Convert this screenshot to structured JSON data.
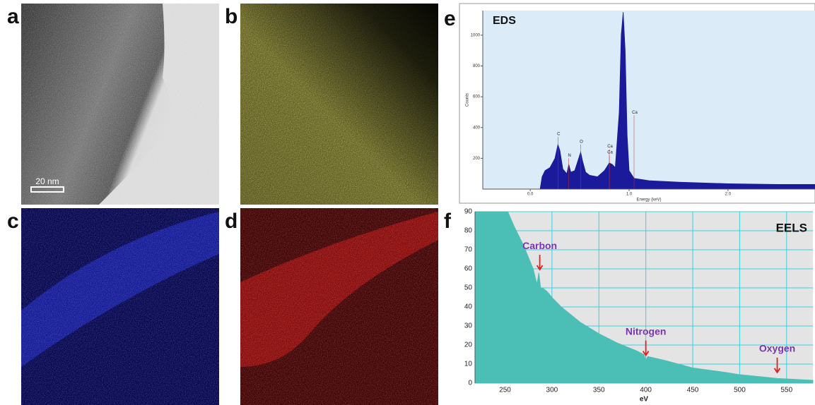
{
  "panels": [
    {
      "label": "a",
      "scale_bar": "20 nm"
    },
    {
      "label": "b"
    },
    {
      "label": "c"
    },
    {
      "label": "d"
    },
    {
      "label": "e"
    },
    {
      "label": "f"
    }
  ],
  "chart_data": [
    {
      "type": "area",
      "title": "EDS",
      "xlabel": "Energy (keV)",
      "ylabel": "Counts",
      "color": "#1a1a9a",
      "xlim": [
        -0.48,
        2.88
      ],
      "ylim": [
        0,
        1160
      ],
      "xticks": [
        {
          "value": 0,
          "label": "0.0"
        },
        {
          "value": 1,
          "label": "1.0"
        },
        {
          "value": 2,
          "label": "2.0"
        }
      ],
      "yticks": [
        200,
        400,
        600,
        800,
        1000
      ],
      "grid": false,
      "x": [
        0.1,
        0.12,
        0.15,
        0.2,
        0.25,
        0.28,
        0.3,
        0.33,
        0.37,
        0.39,
        0.41,
        0.45,
        0.49,
        0.51,
        0.53,
        0.56,
        0.6,
        0.68,
        0.75,
        0.8,
        0.83,
        0.86,
        0.9,
        0.92,
        0.94,
        0.96,
        0.98,
        1.0,
        1.05,
        1.2,
        1.5,
        2.0,
        2.5,
        2.88
      ],
      "values": [
        0,
        80,
        120,
        140,
        200,
        290,
        250,
        130,
        100,
        160,
        110,
        120,
        200,
        240,
        180,
        110,
        90,
        80,
        120,
        170,
        160,
        140,
        500,
        1000,
        1150,
        900,
        350,
        120,
        70,
        55,
        45,
        35,
        30,
        30
      ],
      "annotations": [
        {
          "text": "C",
          "x": 0.28,
          "y": 340
        },
        {
          "text": "N",
          "x": 0.39,
          "y": 200
        },
        {
          "text": "O",
          "x": 0.51,
          "y": 290
        },
        {
          "text": "Ca",
          "x": 0.8,
          "y": 220
        },
        {
          "text": "Ca",
          "x": 0.8,
          "y": 260
        },
        {
          "text": "Ca",
          "x": 1.05,
          "y": 480
        }
      ]
    },
    {
      "type": "area",
      "title": "EELS",
      "xlabel": "eV",
      "color": "#4bbfb6",
      "xlim": [
        218,
        578
      ],
      "ylim": [
        0,
        90
      ],
      "xticks": [
        250,
        300,
        350,
        400,
        450,
        500,
        550
      ],
      "yticks": [
        0,
        10,
        20,
        30,
        40,
        50,
        60,
        70,
        80,
        90
      ],
      "grid": true,
      "x": [
        218,
        253,
        260,
        270,
        280,
        284,
        286,
        287,
        288,
        290,
        295,
        300,
        310,
        320,
        330,
        350,
        370,
        390,
        398,
        400,
        402,
        420,
        450,
        480,
        500,
        520,
        540,
        560,
        578
      ],
      "values": [
        90,
        90,
        82,
        72,
        60,
        52,
        58,
        54,
        50,
        50,
        48,
        45,
        40,
        36,
        32,
        26,
        21,
        17,
        15,
        12,
        14,
        12,
        8,
        6,
        4.5,
        3.5,
        2.5,
        2,
        1.5
      ],
      "annotations": [
        {
          "text": "Carbon",
          "x": 287,
          "y": 57
        },
        {
          "text": "Nitrogen",
          "x": 400,
          "y": 12
        },
        {
          "text": "Oxygen",
          "x": 540,
          "y": 3
        }
      ]
    }
  ]
}
